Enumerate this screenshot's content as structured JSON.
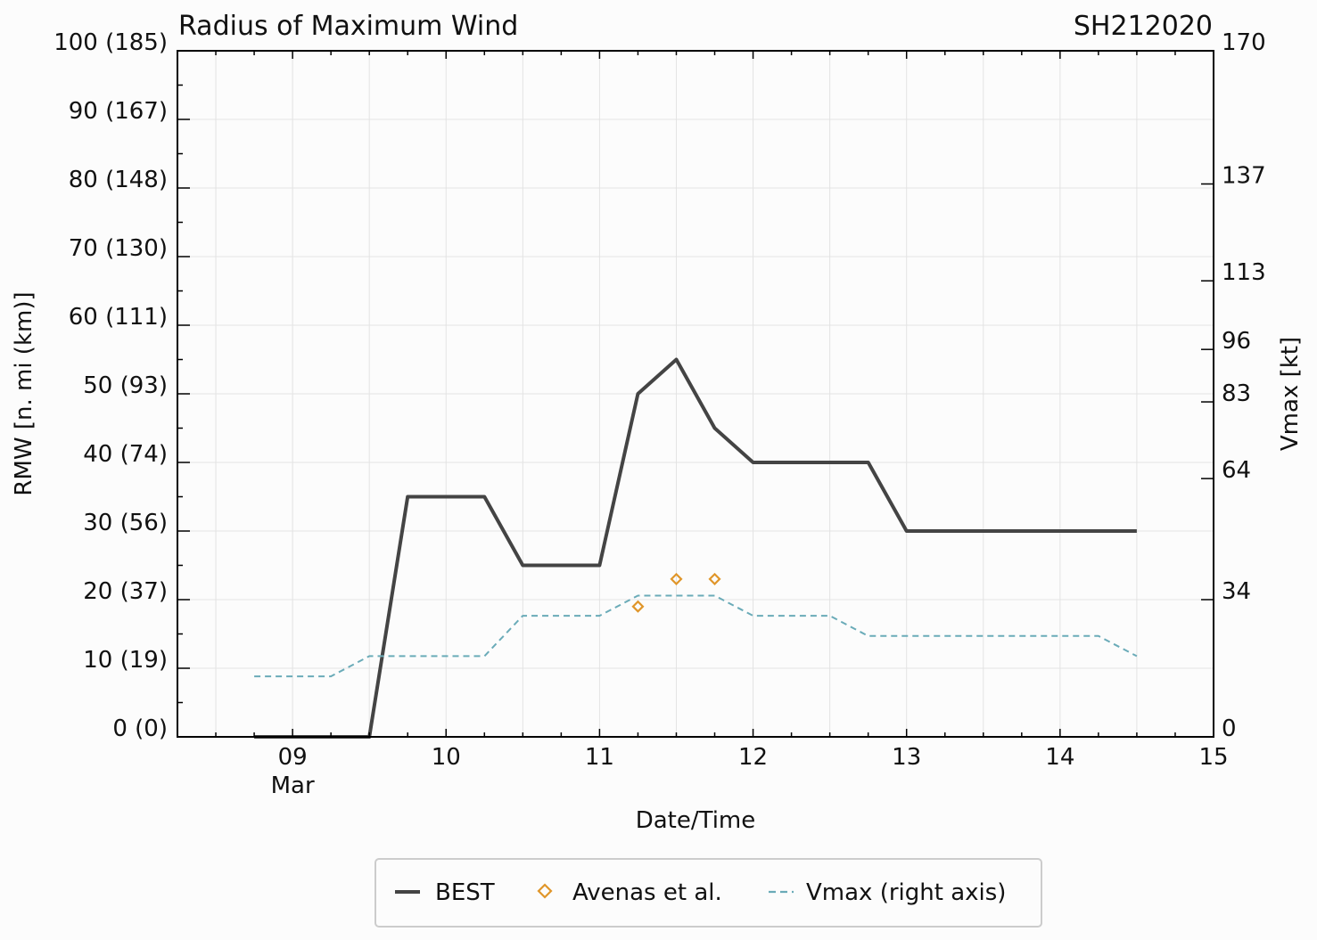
{
  "chart_data": {
    "type": "line",
    "title": "Radius of Maximum Wind",
    "storm_id": "SH212020",
    "xlabel": "Date/Time",
    "ylabel": "RMW [n. mi (km)]",
    "y2label": "Vmax [kt]",
    "x_unit": "day of March 2020",
    "xlim": [
      8.25,
      15
    ],
    "ylim": [
      0,
      100
    ],
    "y2lim": [
      0,
      170
    ],
    "grid": true,
    "legend_position": "bottom-center",
    "x_ticks": [
      {
        "value": 9,
        "label": "09",
        "sublabel": "Mar"
      },
      {
        "value": 10,
        "label": "10",
        "sublabel": ""
      },
      {
        "value": 11,
        "label": "11",
        "sublabel": ""
      },
      {
        "value": 12,
        "label": "12",
        "sublabel": ""
      },
      {
        "value": 13,
        "label": "13",
        "sublabel": ""
      },
      {
        "value": 14,
        "label": "14",
        "sublabel": ""
      },
      {
        "value": 15,
        "label": "15",
        "sublabel": ""
      }
    ],
    "y_ticks": [
      {
        "value": 0,
        "label": "0 (0)"
      },
      {
        "value": 10,
        "label": "10 (19)"
      },
      {
        "value": 20,
        "label": "20 (37)"
      },
      {
        "value": 30,
        "label": "30 (56)"
      },
      {
        "value": 40,
        "label": "40 (74)"
      },
      {
        "value": 50,
        "label": "50 (93)"
      },
      {
        "value": 60,
        "label": "60 (111)"
      },
      {
        "value": 70,
        "label": "70 (130)"
      },
      {
        "value": 80,
        "label": "80 (148)"
      },
      {
        "value": 90,
        "label": "90 (167)"
      },
      {
        "value": 100,
        "label": "100 (185)"
      }
    ],
    "y2_ticks": [
      {
        "value": 0,
        "label": "0"
      },
      {
        "value": 34,
        "label": "34"
      },
      {
        "value": 64,
        "label": "64"
      },
      {
        "value": 83,
        "label": "83"
      },
      {
        "value": 96,
        "label": "96"
      },
      {
        "value": 113,
        "label": "113"
      },
      {
        "value": 137,
        "label": "137"
      },
      {
        "value": 170,
        "label": "170"
      }
    ],
    "series": [
      {
        "name": "BEST",
        "axis": "left",
        "style": "solid",
        "color": "#444444",
        "x": [
          8.75,
          9.0,
          9.25,
          9.5,
          9.75,
          10.0,
          10.25,
          10.5,
          10.75,
          11.0,
          11.25,
          11.5,
          11.75,
          12.0,
          12.25,
          12.5,
          12.75,
          13.0,
          13.25,
          13.5,
          13.75,
          14.0,
          14.25,
          14.5
        ],
        "y": [
          0,
          0,
          0,
          0,
          35,
          35,
          35,
          25,
          25,
          25,
          50,
          55,
          45,
          40,
          40,
          40,
          40,
          30,
          30,
          30,
          30,
          30,
          30,
          30
        ]
      },
      {
        "name": "Avenas et al.",
        "axis": "left",
        "style": "marker-diamond",
        "color": "#e0962a",
        "x": [
          11.25,
          11.5,
          11.75
        ],
        "y": [
          19,
          23,
          23
        ]
      },
      {
        "name": "Vmax (right axis)",
        "axis": "right",
        "style": "dashed",
        "color": "#6aabb8",
        "x": [
          8.75,
          9.0,
          9.25,
          9.5,
          9.75,
          10.0,
          10.25,
          10.5,
          10.75,
          11.0,
          11.25,
          11.5,
          11.75,
          12.0,
          12.25,
          12.5,
          12.75,
          13.0,
          13.25,
          13.5,
          13.75,
          14.0,
          14.25,
          14.5
        ],
        "y": [
          15,
          15,
          15,
          20,
          20,
          20,
          20,
          30,
          30,
          30,
          35,
          35,
          35,
          30,
          30,
          30,
          25,
          25,
          25,
          25,
          25,
          25,
          25,
          20
        ]
      }
    ]
  }
}
